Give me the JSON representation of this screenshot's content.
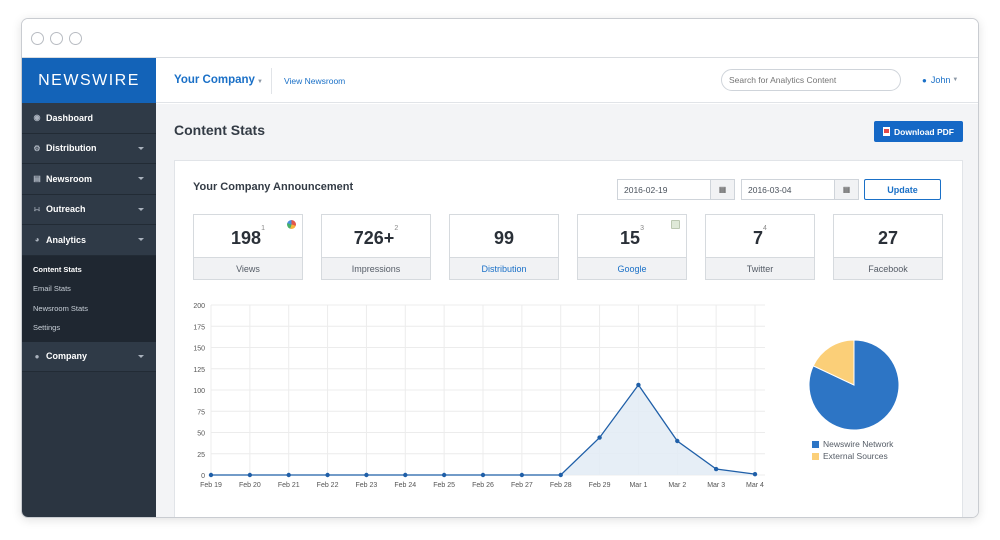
{
  "window": {
    "controls": [
      "close",
      "minimize",
      "maximize"
    ]
  },
  "sidebar": {
    "logo": "NEWSWIRE",
    "items": [
      {
        "label": "Dashboard",
        "icon": "dashboard-icon",
        "has_caret": false
      },
      {
        "label": "Distribution",
        "icon": "distribution-icon",
        "has_caret": true
      },
      {
        "label": "Newsroom",
        "icon": "newsroom-icon",
        "has_caret": true
      },
      {
        "label": "Outreach",
        "icon": "rss-icon",
        "has_caret": true
      },
      {
        "label": "Analytics",
        "icon": "pie-chart-icon",
        "has_caret": true
      }
    ],
    "analytics_subitems": [
      {
        "label": "Content Stats",
        "active": true
      },
      {
        "label": "Email Stats",
        "active": false
      },
      {
        "label": "Newsroom Stats",
        "active": false
      },
      {
        "label": "Settings",
        "active": false
      }
    ],
    "company_item": {
      "label": "Company",
      "icon": "users-icon"
    }
  },
  "topbar": {
    "company": "Your Company",
    "view_newsroom": "View Newsroom",
    "search_placeholder": "Search for Analytics Content",
    "user": "John"
  },
  "main": {
    "title": "Content Stats",
    "download_pdf": "Download PDF",
    "announcement_title": "Your Company Announcement",
    "date_from": "2016-02-19",
    "date_to": "2016-03-04",
    "update_label": "Update",
    "stats": [
      {
        "value": "198",
        "sup": "1",
        "label": "Views",
        "link": false
      },
      {
        "value": "726+",
        "sup": "2",
        "label": "Impressions",
        "link": false
      },
      {
        "value": "99",
        "sup": "",
        "label": "Distribution",
        "link": true
      },
      {
        "value": "15",
        "sup": "3",
        "label": "Google",
        "link": true
      },
      {
        "value": "7",
        "sup": "4",
        "label": "Twitter",
        "link": false
      },
      {
        "value": "27",
        "sup": "",
        "label": "Facebook",
        "link": false
      }
    ]
  },
  "colors": {
    "accent": "#1568c6",
    "sidebar": "#2b3541",
    "line": "#1f5fa8",
    "area": "#e3ecf5",
    "pie_network": "#2d75c5",
    "pie_external": "#fbcf78"
  },
  "chart_data": [
    {
      "type": "area",
      "categories": [
        "Feb 19",
        "Feb 20",
        "Feb 21",
        "Feb 22",
        "Feb 23",
        "Feb 24",
        "Feb 25",
        "Feb 26",
        "Feb 27",
        "Feb 28",
        "Feb 29",
        "Mar 1",
        "Mar 2",
        "Mar 3",
        "Mar 4"
      ],
      "values": [
        0,
        0,
        0,
        0,
        0,
        0,
        0,
        0,
        0,
        0,
        44,
        106,
        40,
        7,
        1
      ],
      "ylim": [
        0,
        200
      ],
      "yticks": [
        0,
        25,
        50,
        75,
        100,
        125,
        150,
        175,
        200
      ],
      "grid": true
    },
    {
      "type": "pie",
      "labels": [
        "Newswire Network",
        "External Sources"
      ],
      "values": [
        82,
        18
      ],
      "legend": "bottom"
    }
  ]
}
